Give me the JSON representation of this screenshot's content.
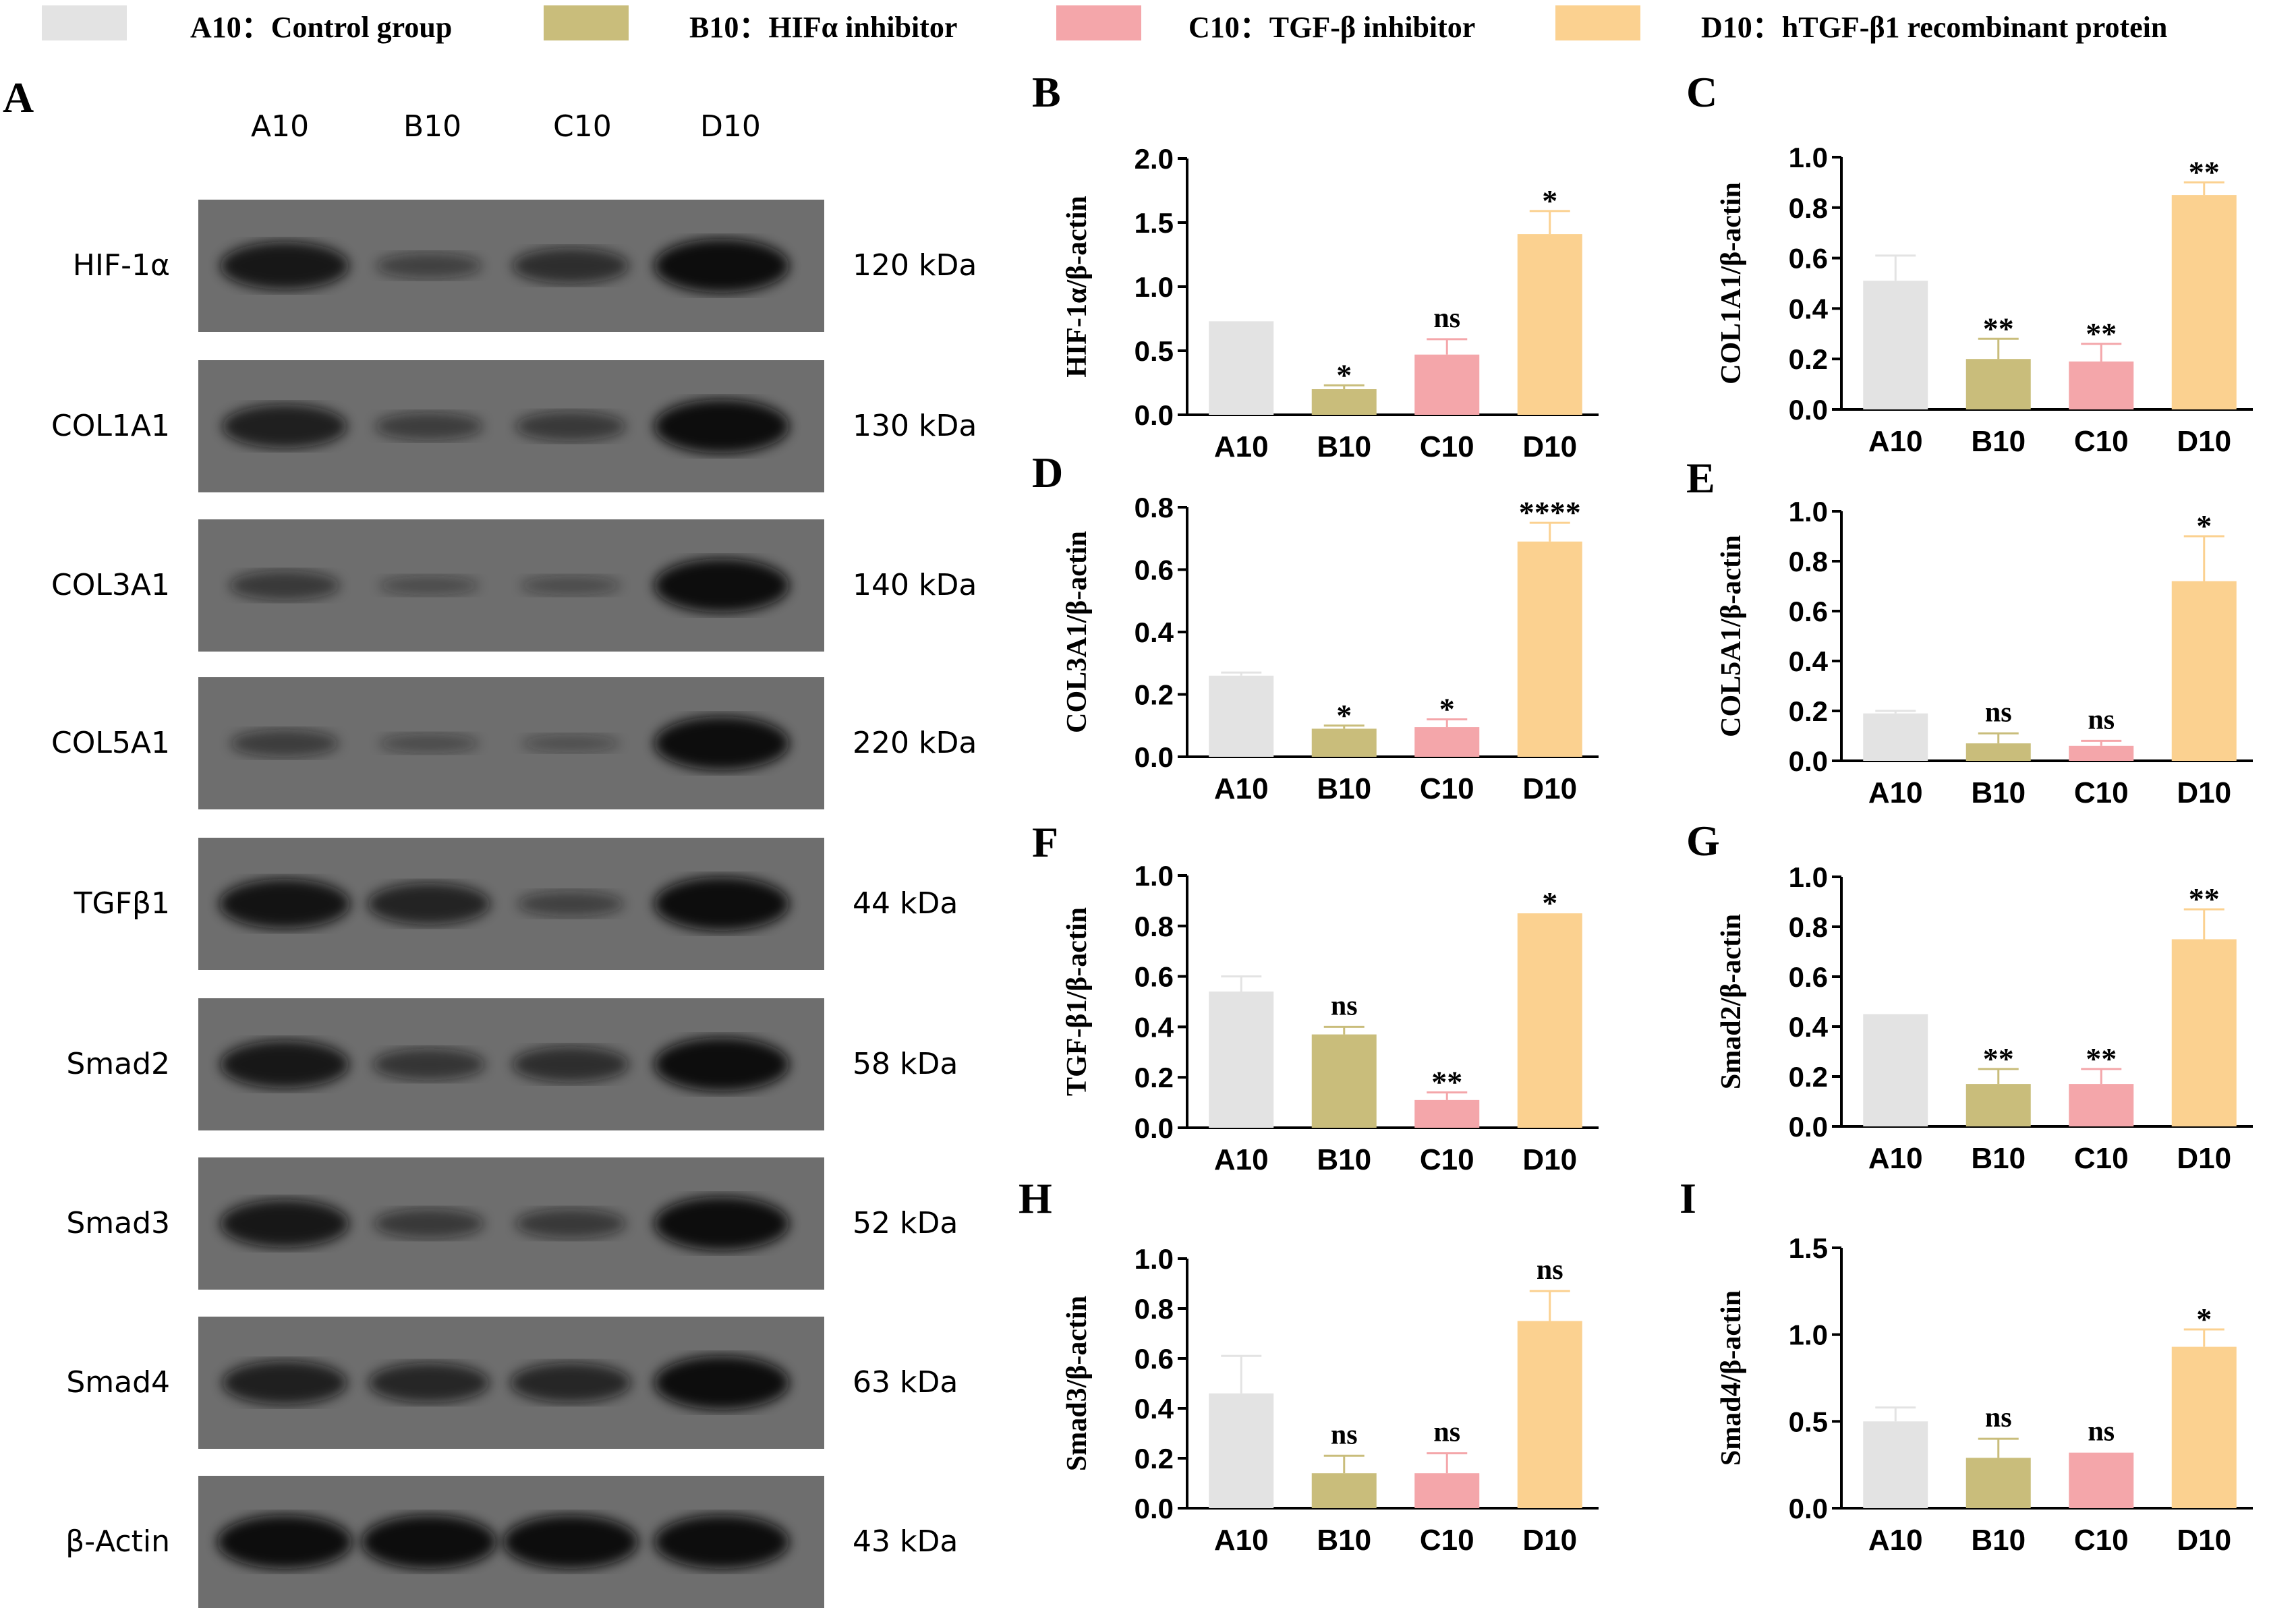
{
  "legend": [
    {
      "label": "A10：Control group",
      "color": "#e3e3e3"
    },
    {
      "label": "B10：HIFα inhibitor",
      "color": "#c9bd7b"
    },
    {
      "label": "C10：TGF-β inhibitor",
      "color": "#f4a6aa"
    },
    {
      "label": "D10：hTGF-β1 recombinant protein",
      "color": "#fbd190"
    }
  ],
  "western_blot": {
    "panel": "A",
    "columns": [
      "A10",
      "B10",
      "C10",
      "D10"
    ],
    "rows": [
      {
        "protein": "HIF-1α",
        "kda": "120 kDa",
        "intensity": [
          0.85,
          0.3,
          0.55,
          1.0
        ]
      },
      {
        "protein": "COL1A1",
        "kda": "130 kDa",
        "intensity": [
          0.75,
          0.35,
          0.4,
          1.0
        ]
      },
      {
        "protein": "COL3A1",
        "kda": "140 kDa",
        "intensity": [
          0.4,
          0.15,
          0.15,
          1.0
        ]
      },
      {
        "protein": "COL5A1",
        "kda": "220 kDa",
        "intensity": [
          0.35,
          0.15,
          0.1,
          1.0
        ]
      },
      {
        "protein": "TGFβ1",
        "kda": "44 kDa",
        "intensity": [
          0.9,
          0.7,
          0.3,
          1.0
        ]
      },
      {
        "protein": "Smad2",
        "kda": "58 kDa",
        "intensity": [
          0.85,
          0.45,
          0.55,
          1.0
        ]
      },
      {
        "protein": "Smad3",
        "kda": "52 kDa",
        "intensity": [
          0.85,
          0.4,
          0.4,
          1.0
        ]
      },
      {
        "protein": "Smad4",
        "kda": "63 kDa",
        "intensity": [
          0.75,
          0.65,
          0.65,
          1.0
        ]
      },
      {
        "protein": "β-Actin",
        "kda": "43 kDa",
        "intensity": [
          1.0,
          1.0,
          1.0,
          1.0
        ]
      }
    ]
  },
  "chart_data": [
    {
      "panel": "B",
      "type": "bar",
      "ylabel": "HIF-1α/β-actin",
      "categories": [
        "A10",
        "B10",
        "C10",
        "D10"
      ],
      "values": [
        0.73,
        0.2,
        0.47,
        1.41
      ],
      "errors": [
        0,
        0.03,
        0.12,
        0.18
      ],
      "significance": [
        "",
        "*",
        "ns",
        "*"
      ],
      "ylim": [
        0,
        2.0
      ],
      "yticks": [
        "0.0",
        "0.5",
        "1.0",
        "1.5",
        "2.0"
      ]
    },
    {
      "panel": "C",
      "type": "bar",
      "ylabel": "COL1A1/β-actin",
      "categories": [
        "A10",
        "B10",
        "C10",
        "D10"
      ],
      "values": [
        0.51,
        0.2,
        0.19,
        0.85
      ],
      "errors": [
        0.1,
        0.08,
        0.07,
        0.05
      ],
      "significance": [
        "",
        "**",
        "**",
        "**"
      ],
      "ylim": [
        0,
        1.0
      ],
      "yticks": [
        "0.0",
        "0.2",
        "0.4",
        "0.6",
        "0.8",
        "1.0"
      ]
    },
    {
      "panel": "D",
      "type": "bar",
      "ylabel": "COL3A1/β-actin",
      "categories": [
        "A10",
        "B10",
        "C10",
        "D10"
      ],
      "values": [
        0.26,
        0.09,
        0.095,
        0.69
      ],
      "errors": [
        0.01,
        0.01,
        0.025,
        0.06
      ],
      "significance": [
        "",
        "*",
        "*",
        "****"
      ],
      "ylim": [
        0,
        0.8
      ],
      "yticks": [
        "0.0",
        "0.2",
        "0.4",
        "0.6",
        "0.8"
      ]
    },
    {
      "panel": "E",
      "type": "bar",
      "ylabel": "COL5A1/β-actin",
      "categories": [
        "A10",
        "B10",
        "C10",
        "D10"
      ],
      "values": [
        0.19,
        0.07,
        0.06,
        0.72
      ],
      "errors": [
        0.01,
        0.04,
        0.02,
        0.18
      ],
      "significance": [
        "",
        "ns",
        "ns",
        "*"
      ],
      "ylim": [
        0,
        1.0
      ],
      "yticks": [
        "0.0",
        "0.2",
        "0.4",
        "0.6",
        "0.8",
        "1.0"
      ]
    },
    {
      "panel": "F",
      "type": "bar",
      "ylabel": "TGF-β1/β-actin",
      "categories": [
        "A10",
        "B10",
        "C10",
        "D10"
      ],
      "values": [
        0.54,
        0.37,
        0.11,
        0.85
      ],
      "errors": [
        0.06,
        0.03,
        0.03,
        0.0
      ],
      "significance": [
        "",
        "ns",
        "**",
        "*"
      ],
      "ylim": [
        0,
        1.0
      ],
      "yticks": [
        "0.0",
        "0.2",
        "0.4",
        "0.6",
        "0.8",
        "1.0"
      ]
    },
    {
      "panel": "G",
      "type": "bar",
      "ylabel": "Smad2/β-actin",
      "categories": [
        "A10",
        "B10",
        "C10",
        "D10"
      ],
      "values": [
        0.45,
        0.17,
        0.17,
        0.75
      ],
      "errors": [
        0.0,
        0.06,
        0.06,
        0.12
      ],
      "significance": [
        "",
        "**",
        "**",
        "**"
      ],
      "ylim": [
        0,
        1.0
      ],
      "yticks": [
        "0.0",
        "0.2",
        "0.4",
        "0.6",
        "0.8",
        "1.0"
      ]
    },
    {
      "panel": "H",
      "type": "bar",
      "ylabel": "Smad3/β-actin",
      "categories": [
        "A10",
        "B10",
        "C10",
        "D10"
      ],
      "values": [
        0.46,
        0.14,
        0.14,
        0.75
      ],
      "errors": [
        0.15,
        0.07,
        0.08,
        0.12
      ],
      "significance": [
        "",
        "ns",
        "ns",
        "ns"
      ],
      "ylim": [
        0,
        1.0
      ],
      "yticks": [
        "0.0",
        "0.2",
        "0.4",
        "0.6",
        "0.8",
        "1.0"
      ]
    },
    {
      "panel": "I",
      "type": "bar",
      "ylabel": "Smad4/β-actin",
      "categories": [
        "A10",
        "B10",
        "C10",
        "D10"
      ],
      "values": [
        0.5,
        0.29,
        0.32,
        0.93
      ],
      "errors": [
        0.08,
        0.11,
        0.0,
        0.1
      ],
      "significance": [
        "",
        "ns",
        "ns",
        "*"
      ],
      "ylim": [
        0,
        1.5
      ],
      "yticks": [
        "0.0",
        "0.5",
        "1.0",
        "1.5"
      ]
    }
  ]
}
